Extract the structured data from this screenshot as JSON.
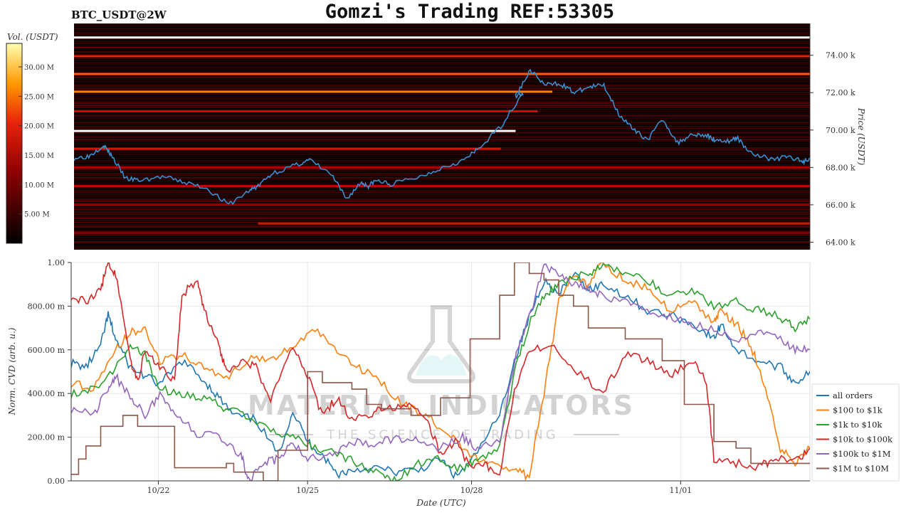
{
  "header": {
    "symbol": "BTC_USDT@2W",
    "title": "Gomzi's Trading REF:53305"
  },
  "watermark": {
    "brand": "MATERIAL INDICATORS",
    "tagline": "THE SCIENCE OF TRADING"
  },
  "colors": {
    "price_line": "#3a8fd0",
    "all_orders": "#1f77b4",
    "tier_100_1k": "#ff7f0e",
    "tier_1k_10k": "#2ca02c",
    "tier_10k_100k": "#d62728",
    "tier_100k_1m": "#9467bd",
    "tier_1m_10m": "#8c564b",
    "heatmap_bg": "#000000"
  },
  "chart_data": [
    {
      "type": "heatmap",
      "colorbar_label": "Vol. (USDT)",
      "colorbar_ticks": [
        "5.00 M",
        "10.00 M",
        "15.00 M",
        "20.00 M",
        "25.00 M",
        "30.00 M"
      ],
      "colorbar_range": [
        0,
        34
      ],
      "colormap": "hot",
      "ylabel": "Price (USDT)",
      "yticks": [
        "64.00 k",
        "66.00 k",
        "68.00 k",
        "70.00 k",
        "72.00 k",
        "74.00 k"
      ],
      "ylim": [
        63600,
        75700
      ],
      "price_series": {
        "name": "price",
        "t": [
          0,
          0.02,
          0.04,
          0.05,
          0.07,
          0.09,
          0.12,
          0.15,
          0.18,
          0.21,
          0.24,
          0.25,
          0.27,
          0.3,
          0.32,
          0.35,
          0.37,
          0.39,
          0.4,
          0.41,
          0.43,
          0.47,
          0.5,
          0.53,
          0.55,
          0.58,
          0.61,
          0.6,
          0.62,
          0.64,
          0.66,
          0.68,
          0.7,
          0.72,
          0.74,
          0.76,
          0.78,
          0.8,
          0.82,
          0.84,
          0.86,
          0.87,
          0.89,
          0.9,
          0.92,
          0.95,
          0.97,
          0.99,
          1.0
        ],
        "price": [
          68500,
          68600,
          69200,
          68700,
          67400,
          67300,
          67500,
          67200,
          66900,
          66000,
          66800,
          67000,
          67700,
          68100,
          68400,
          67600,
          66300,
          67200,
          67000,
          67300,
          67100,
          67500,
          68000,
          68400,
          69000,
          70200,
          72000,
          71800,
          73200,
          72400,
          72500,
          72000,
          72300,
          72400,
          70900,
          70000,
          69500,
          70600,
          69300,
          69800,
          69700,
          69500,
          69400,
          69600,
          68800,
          68400,
          68600,
          68300,
          68500
        ]
      },
      "liquidity_bands": [
        {
          "price": 74950,
          "vol": 34,
          "start": 0.0,
          "end": 1.0
        },
        {
          "price": 73950,
          "vol": 18,
          "start": 0.0,
          "end": 1.0
        },
        {
          "price": 73000,
          "vol": 24,
          "start": 0.0,
          "end": 1.0
        },
        {
          "price": 72050,
          "vol": 26,
          "start": 0.0,
          "end": 0.65
        },
        {
          "price": 71000,
          "vol": 15,
          "start": 0.0,
          "end": 0.63
        },
        {
          "price": 69950,
          "vol": 34,
          "start": 0.0,
          "end": 0.6
        },
        {
          "price": 69000,
          "vol": 16,
          "start": 0.0,
          "end": 0.58
        },
        {
          "price": 68000,
          "vol": 12,
          "start": 0.0,
          "end": 1.0
        },
        {
          "price": 67000,
          "vol": 14,
          "start": 0.0,
          "end": 1.0
        },
        {
          "price": 66000,
          "vol": 10,
          "start": 0.0,
          "end": 1.0
        },
        {
          "price": 65000,
          "vol": 16,
          "start": 0.25,
          "end": 1.0
        },
        {
          "price": 64500,
          "vol": 9,
          "start": 0.0,
          "end": 1.0
        }
      ]
    },
    {
      "type": "line",
      "xlabel": "Date (UTC)",
      "ylabel": "Norm. CVD (arb. u.)",
      "xticks": [
        {
          "label": "10/22",
          "t": 0.118
        },
        {
          "label": "10/25",
          "t": 0.32
        },
        {
          "label": "10/28",
          "t": 0.542
        },
        {
          "label": "11/01",
          "t": 0.825
        }
      ],
      "yticks": [
        "0.00",
        "200.00 m",
        "400.00 m",
        "600.00 m",
        "800.00 m",
        "1.00"
      ],
      "ylim": [
        0,
        1
      ],
      "series": [
        {
          "name": "all orders",
          "color_key": "all_orders",
          "t": [
            0,
            0.02,
            0.04,
            0.05,
            0.06,
            0.08,
            0.1,
            0.12,
            0.15,
            0.18,
            0.2,
            0.22,
            0.25,
            0.28,
            0.3,
            0.32,
            0.34,
            0.36,
            0.38,
            0.41,
            0.44,
            0.47,
            0.5,
            0.52,
            0.54,
            0.58,
            0.6,
            0.62,
            0.64,
            0.66,
            0.68,
            0.7,
            0.72,
            0.75,
            0.78,
            0.82,
            0.85,
            0.87,
            0.88,
            0.9,
            0.93,
            0.96,
            0.98,
            1.0
          ],
          "v": [
            0.54,
            0.52,
            0.62,
            0.76,
            0.65,
            0.52,
            0.48,
            0.44,
            0.55,
            0.46,
            0.38,
            0.3,
            0.28,
            0.12,
            0.32,
            0.18,
            0.12,
            0.03,
            0.05,
            0.06,
            0.04,
            0.05,
            0.1,
            0.02,
            0.08,
            0.3,
            0.55,
            0.75,
            0.92,
            0.85,
            0.95,
            0.88,
            0.9,
            0.85,
            0.78,
            0.75,
            0.7,
            0.65,
            0.72,
            0.6,
            0.55,
            0.52,
            0.45,
            0.5
          ]
        },
        {
          "name": "$100 to $1k",
          "color_key": "tier_100_1k",
          "t": [
            0,
            0.03,
            0.06,
            0.08,
            0.1,
            0.12,
            0.15,
            0.18,
            0.21,
            0.24,
            0.27,
            0.3,
            0.33,
            0.36,
            0.39,
            0.42,
            0.45,
            0.48,
            0.51,
            0.54,
            0.57,
            0.6,
            0.62,
            0.64,
            0.66,
            0.68,
            0.7,
            0.72,
            0.75,
            0.78,
            0.81,
            0.84,
            0.87,
            0.88,
            0.9,
            0.92,
            0.94,
            0.96,
            0.98,
            1.0
          ],
          "v": [
            0.45,
            0.42,
            0.6,
            0.68,
            0.7,
            0.55,
            0.58,
            0.52,
            0.47,
            0.56,
            0.55,
            0.62,
            0.7,
            0.6,
            0.52,
            0.45,
            0.35,
            0.3,
            0.22,
            0.12,
            0.08,
            0.05,
            0.02,
            0.4,
            0.82,
            0.95,
            0.9,
            1.0,
            0.92,
            0.88,
            0.78,
            0.82,
            0.72,
            0.78,
            0.72,
            0.62,
            0.42,
            0.15,
            0.08,
            0.15
          ]
        },
        {
          "name": "$1k to $10k",
          "color_key": "tier_1k_10k",
          "t": [
            0,
            0.03,
            0.06,
            0.08,
            0.1,
            0.12,
            0.15,
            0.18,
            0.21,
            0.24,
            0.27,
            0.3,
            0.33,
            0.36,
            0.39,
            0.42,
            0.44,
            0.47,
            0.5,
            0.53,
            0.55,
            0.58,
            0.6,
            0.62,
            0.64,
            0.66,
            0.7,
            0.72,
            0.75,
            0.78,
            0.81,
            0.84,
            0.87,
            0.9,
            0.93,
            0.96,
            0.98,
            1.0
          ],
          "v": [
            0.4,
            0.42,
            0.52,
            0.62,
            0.58,
            0.42,
            0.4,
            0.38,
            0.33,
            0.3,
            0.24,
            0.2,
            0.15,
            0.12,
            0.08,
            0.02,
            0.0,
            0.08,
            0.1,
            0.05,
            0.1,
            0.15,
            0.5,
            0.72,
            0.85,
            0.9,
            0.95,
            0.98,
            0.95,
            0.92,
            0.85,
            0.88,
            0.8,
            0.82,
            0.78,
            0.75,
            0.7,
            0.74
          ]
        },
        {
          "name": "$10k to $100k",
          "color_key": "tier_10k_100k",
          "t": [
            0,
            0.02,
            0.04,
            0.05,
            0.06,
            0.08,
            0.09,
            0.1,
            0.12,
            0.14,
            0.15,
            0.17,
            0.18,
            0.2,
            0.21,
            0.23,
            0.25,
            0.27,
            0.3,
            0.32,
            0.34,
            0.36,
            0.38,
            0.4,
            0.42,
            0.45,
            0.48,
            0.5,
            0.52,
            0.54,
            0.56,
            0.58,
            0.6,
            0.62,
            0.65,
            0.68,
            0.72,
            0.75,
            0.78,
            0.81,
            0.84,
            0.86,
            0.87,
            0.9,
            0.93,
            0.95,
            0.98,
            1.0
          ],
          "v": [
            0.85,
            0.82,
            0.88,
            1.0,
            0.95,
            0.55,
            0.45,
            0.6,
            0.52,
            0.45,
            0.85,
            0.92,
            0.78,
            0.62,
            0.5,
            0.55,
            0.52,
            0.38,
            0.62,
            0.48,
            0.3,
            0.38,
            0.28,
            0.3,
            0.33,
            0.35,
            0.3,
            0.12,
            0.18,
            0.06,
            0.08,
            0.02,
            0.42,
            0.6,
            0.62,
            0.52,
            0.4,
            0.58,
            0.55,
            0.48,
            0.55,
            0.45,
            0.1,
            0.08,
            0.06,
            0.1,
            0.09,
            0.15
          ]
        },
        {
          "name": "$100k to $1M",
          "color_key": "tier_100k_1m",
          "t": [
            0,
            0.03,
            0.05,
            0.06,
            0.08,
            0.1,
            0.12,
            0.14,
            0.17,
            0.2,
            0.23,
            0.24,
            0.26,
            0.28,
            0.3,
            0.32,
            0.35,
            0.38,
            0.41,
            0.44,
            0.47,
            0.5,
            0.53,
            0.55,
            0.58,
            0.6,
            0.62,
            0.64,
            0.66,
            0.68,
            0.7,
            0.72,
            0.75,
            0.78,
            0.81,
            0.84,
            0.87,
            0.9,
            0.93,
            0.96,
            0.98,
            1.0
          ],
          "v": [
            0.33,
            0.3,
            0.42,
            0.48,
            0.38,
            0.3,
            0.4,
            0.3,
            0.22,
            0.2,
            0.12,
            0.0,
            0.08,
            0.1,
            0.18,
            0.1,
            0.12,
            0.18,
            0.17,
            0.2,
            0.18,
            0.15,
            0.2,
            0.15,
            0.18,
            0.55,
            0.75,
            0.98,
            0.95,
            0.9,
            0.88,
            0.84,
            0.82,
            0.78,
            0.75,
            0.72,
            0.7,
            0.65,
            0.68,
            0.65,
            0.6,
            0.6
          ]
        },
        {
          "name": "$1M to $10M",
          "color_key": "tier_1m_10m",
          "step": true,
          "t": [
            0,
            0.01,
            0.02,
            0.04,
            0.07,
            0.09,
            0.14,
            0.18,
            0.21,
            0.22,
            0.26,
            0.28,
            0.32,
            0.34,
            0.38,
            0.4,
            0.42,
            0.46,
            0.5,
            0.54,
            0.58,
            0.6,
            0.62,
            0.64,
            0.66,
            0.68,
            0.7,
            0.72,
            0.75,
            0.8,
            0.83,
            0.87,
            0.9,
            0.92,
            1.0
          ],
          "v": [
            0.03,
            0.1,
            0.16,
            0.25,
            0.3,
            0.25,
            0.06,
            0.06,
            0.08,
            0.04,
            0.0,
            0.14,
            0.5,
            0.45,
            0.42,
            0.35,
            0.33,
            0.3,
            0.38,
            0.65,
            0.85,
            1.0,
            0.95,
            0.92,
            0.85,
            0.8,
            0.7,
            0.7,
            0.65,
            0.55,
            0.35,
            0.18,
            0.15,
            0.08,
            0.08
          ]
        }
      ]
    }
  ]
}
